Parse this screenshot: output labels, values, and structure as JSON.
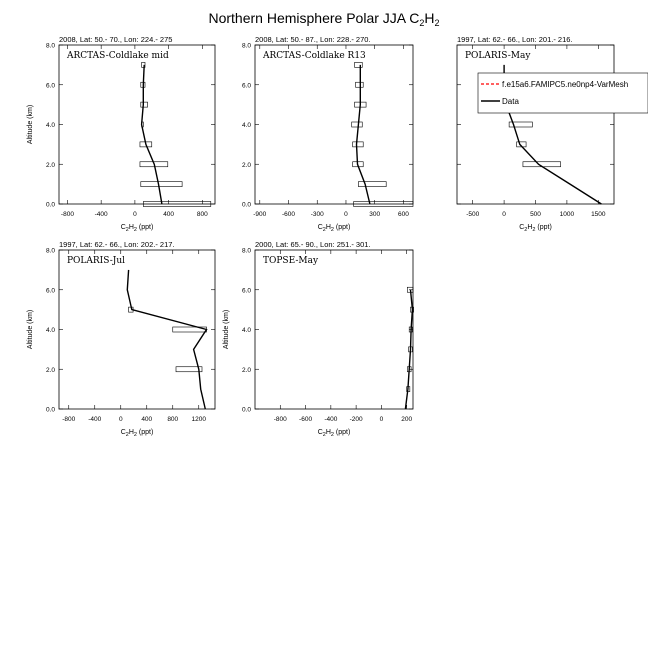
{
  "title": {
    "text": "Northern Hemisphere Polar JJA C",
    "sub1": "2",
    "mid": "H",
    "sub2": "2"
  },
  "xlabel": {
    "text": "C",
    "sub1": "2",
    "mid": "H",
    "sub2": "2",
    "unit": " (ppt)"
  },
  "ylabel": "Altitude (km)",
  "legend": {
    "model": "f.e15a6.FAMIPC5.ne0np4-VarMesh",
    "data": "Data",
    "model_color": "#ff0000",
    "data_color": "#000000"
  },
  "chart_data": [
    {
      "type": "line",
      "header": "2008, Lat:  50.- 70., Lon: 224.- 275",
      "campaign": "ARCTAS-Coldlake mid",
      "xlim": [
        -900,
        950
      ],
      "xticks": [
        -800,
        -400,
        0,
        400,
        800
      ],
      "xtick_labels": [
        "-800",
        "-400",
        "0",
        "400",
        "800"
      ],
      "ylim": [
        0,
        8
      ],
      "yticks": [
        0,
        2,
        4,
        6,
        8
      ],
      "ytick_labels": [
        "0.0",
        "2.0",
        "4.0",
        "6.0",
        "8.0"
      ],
      "series": [
        {
          "y": [
            0.0,
            1.0,
            2.0,
            3.0,
            4.0,
            5.0,
            6.0,
            7.0
          ],
          "x": [
            320,
            280,
            230,
            130,
            80,
            100,
            100,
            110
          ]
        }
      ],
      "boxes": [
        {
          "y": 0.0,
          "xmin": 100,
          "xmax": 900
        },
        {
          "y": 1.0,
          "xmin": 70,
          "xmax": 560
        },
        {
          "y": 2.0,
          "xmin": 60,
          "xmax": 390
        },
        {
          "y": 3.0,
          "xmin": 60,
          "xmax": 200
        },
        {
          "y": 4.0,
          "xmin": 80,
          "xmax": 100
        },
        {
          "y": 5.0,
          "xmin": 70,
          "xmax": 150
        },
        {
          "y": 6.0,
          "xmin": 70,
          "xmax": 120
        },
        {
          "y": 7.0,
          "xmin": 80,
          "xmax": 120
        }
      ]
    },
    {
      "type": "line",
      "header": "2008, Lat:  50.- 87., Lon: 228.- 270.",
      "campaign": "ARCTAS-Coldlake R13",
      "xlim": [
        -950,
        700
      ],
      "xticks": [
        -900,
        -600,
        -300,
        0,
        300,
        600
      ],
      "xtick_labels": [
        "-900",
        "-600",
        "-300",
        "0",
        "300",
        "600"
      ],
      "ylim": [
        0,
        8
      ],
      "yticks": [
        0,
        2,
        4,
        6,
        8
      ],
      "ytick_labels": [
        "0.0",
        "2.0",
        "4.0",
        "6.0",
        "8.0"
      ],
      "series": [
        {
          "y": [
            0.0,
            1.0,
            2.0,
            3.0,
            4.0,
            5.0,
            6.0,
            7.0
          ],
          "x": [
            250,
            200,
            120,
            110,
            130,
            150,
            150,
            150
          ]
        }
      ],
      "boxes": [
        {
          "y": 0.0,
          "xmin": 80,
          "xmax": 700
        },
        {
          "y": 1.0,
          "xmin": 130,
          "xmax": 420
        },
        {
          "y": 2.0,
          "xmin": 70,
          "xmax": 180
        },
        {
          "y": 3.0,
          "xmin": 70,
          "xmax": 180
        },
        {
          "y": 4.0,
          "xmin": 60,
          "xmax": 170
        },
        {
          "y": 5.0,
          "xmin": 90,
          "xmax": 210
        },
        {
          "y": 6.0,
          "xmin": 100,
          "xmax": 180
        },
        {
          "y": 7.0,
          "xmin": 90,
          "xmax": 170
        }
      ]
    },
    {
      "type": "line",
      "header": "1997, Lat: 62.- 66., Lon: 201.- 216.",
      "campaign": "POLARIS-May",
      "xlim": [
        -750,
        1750
      ],
      "xticks": [
        -500,
        0,
        500,
        1000,
        1500
      ],
      "xtick_labels": [
        "-500",
        "0",
        "500",
        "1000",
        "1500"
      ],
      "ylim": [
        0,
        8
      ],
      "yticks": [
        0,
        2,
        4,
        6,
        8
      ],
      "ytick_labels": [],
      "series": [
        {
          "y": [
            0.0,
            1.0,
            2.0,
            3.0,
            4.0,
            5.0,
            6.0,
            7.0
          ],
          "x": [
            1550,
            1050,
            550,
            250,
            150,
            30,
            0,
            0
          ]
        }
      ],
      "boxes": [
        {
          "y": 2.0,
          "xmin": 300,
          "xmax": 900
        },
        {
          "y": 3.0,
          "xmin": 200,
          "xmax": 350
        },
        {
          "y": 4.0,
          "xmin": 80,
          "xmax": 450
        }
      ]
    },
    {
      "type": "line",
      "header": "1997, Lat: 62.- 66., Lon: 202.- 217.",
      "campaign": "POLARIS-Jul",
      "xlim": [
        -950,
        1450
      ],
      "xticks": [
        -800,
        -400,
        0,
        400,
        800,
        1200
      ],
      "xtick_labels": [
        "-800",
        "-400",
        "0",
        "400",
        "800",
        "1200"
      ],
      "ylim": [
        0,
        8
      ],
      "yticks": [
        0,
        2,
        4,
        6,
        8
      ],
      "ytick_labels": [
        "0.0",
        "2.0",
        "4.0",
        "6.0",
        "8.0"
      ],
      "series": [
        {
          "y": [
            0.0,
            1.0,
            2.0,
            3.0,
            4.0,
            5.0,
            6.0,
            7.0
          ],
          "x": [
            1300,
            1230,
            1200,
            1120,
            1320,
            170,
            100,
            120
          ]
        }
      ],
      "boxes": [
        {
          "y": 2.0,
          "xmin": 850,
          "xmax": 1250
        },
        {
          "y": 4.0,
          "xmin": 800,
          "xmax": 1320
        },
        {
          "y": 5.0,
          "xmin": 120,
          "xmax": 190
        }
      ]
    },
    {
      "type": "line",
      "header": "2000, Lat: 65.- 90., Lon: 251.- 301.",
      "campaign": "TOPSE-May",
      "xlim": [
        -1000,
        250
      ],
      "xticks": [
        -800,
        -600,
        -400,
        -200,
        0,
        200
      ],
      "xtick_labels": [
        "-800",
        "-600",
        "-400",
        "-200",
        "0",
        "200"
      ],
      "ylim": [
        0,
        8
      ],
      "yticks": [
        0,
        2,
        4,
        6,
        8
      ],
      "ytick_labels": [
        "0.0",
        "2.0",
        "4.0",
        "6.0",
        "8.0"
      ],
      "series": [
        {
          "y": [
            0.0,
            1.0,
            2.0,
            3.0,
            4.0,
            5.0,
            6.0
          ],
          "x": [
            190,
            210,
            220,
            230,
            235,
            245,
            230
          ]
        }
      ],
      "boxes": [
        {
          "y": 1.0,
          "xmin": 200,
          "xmax": 225
        },
        {
          "y": 2.0,
          "xmin": 205,
          "xmax": 235
        },
        {
          "y": 3.0,
          "xmin": 215,
          "xmax": 245
        },
        {
          "y": 4.0,
          "xmin": 220,
          "xmax": 245
        },
        {
          "y": 5.0,
          "xmin": 230,
          "xmax": 255
        },
        {
          "y": 6.0,
          "xmin": 205,
          "xmax": 250
        }
      ]
    }
  ]
}
